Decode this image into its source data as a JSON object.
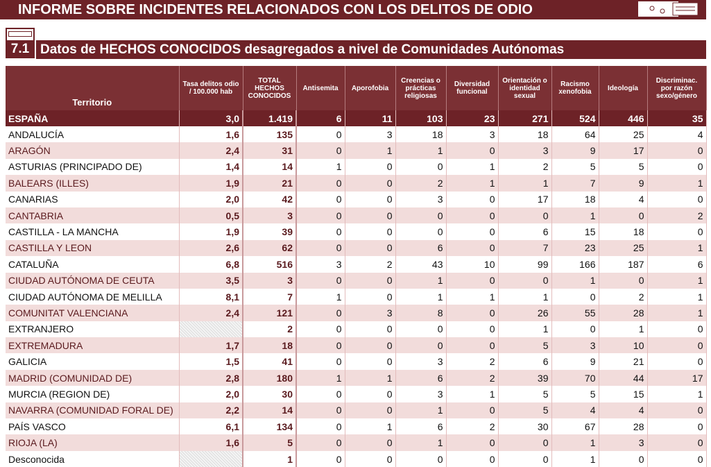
{
  "header": {
    "title": "INFORME SOBRE INCIDENTES RELACIONADOS CON LOS DELITOS DE ODIO"
  },
  "section": {
    "number": "7.1",
    "title": "Datos de HECHOS CONOCIDOS desagregados a nivel de Comunidades Autónomas"
  },
  "table": {
    "columns": [
      "Territorio",
      "Tasa delitos odio / 100.000 hab",
      "TOTAL HECHOS CONOCIDOS",
      "Antisemita",
      "Aporofobia",
      "Creencias o prácticas religiosas",
      "Diversidad funcional",
      "Orientación o identidad sexual",
      "Racismo xenofobia",
      "Ideología",
      "Discriminac. por razón sexo/género"
    ],
    "total": [
      "ESPAÑA",
      "3,0",
      "1.419",
      "6",
      "11",
      "103",
      "23",
      "271",
      "524",
      "446",
      "35"
    ],
    "rows": [
      [
        "ANDALUCÍA",
        "1,6",
        "135",
        "0",
        "3",
        "18",
        "3",
        "18",
        "64",
        "25",
        "4"
      ],
      [
        "ARAGÓN",
        "2,4",
        "31",
        "0",
        "1",
        "1",
        "0",
        "3",
        "9",
        "17",
        "0"
      ],
      [
        "ASTURIAS (PRINCIPADO DE)",
        "1,4",
        "14",
        "1",
        "0",
        "0",
        "1",
        "2",
        "5",
        "5",
        "0"
      ],
      [
        "BALEARS (ILLES)",
        "1,9",
        "21",
        "0",
        "0",
        "2",
        "1",
        "1",
        "7",
        "9",
        "1"
      ],
      [
        "CANARIAS",
        "2,0",
        "42",
        "0",
        "0",
        "3",
        "0",
        "17",
        "18",
        "4",
        "0"
      ],
      [
        "CANTABRIA",
        "0,5",
        "3",
        "0",
        "0",
        "0",
        "0",
        "0",
        "1",
        "0",
        "2"
      ],
      [
        "CASTILLA - LA MANCHA",
        "1,9",
        "39",
        "0",
        "0",
        "0",
        "0",
        "6",
        "15",
        "18",
        "0"
      ],
      [
        "CASTILLA Y LEON",
        "2,6",
        "62",
        "0",
        "0",
        "6",
        "0",
        "7",
        "23",
        "25",
        "1"
      ],
      [
        "CATALUÑA",
        "6,8",
        "516",
        "3",
        "2",
        "43",
        "10",
        "99",
        "166",
        "187",
        "6"
      ],
      [
        "CIUDAD AUTÓNOMA DE CEUTA",
        "3,5",
        "3",
        "0",
        "0",
        "1",
        "0",
        "0",
        "1",
        "0",
        "1"
      ],
      [
        "CIUDAD AUTÓNOMA DE MELILLA",
        "8,1",
        "7",
        "1",
        "0",
        "1",
        "1",
        "1",
        "0",
        "2",
        "1"
      ],
      [
        "COMUNITAT VALENCIANA",
        "2,4",
        "121",
        "0",
        "3",
        "8",
        "0",
        "26",
        "55",
        "28",
        "1"
      ],
      [
        "EXTRANJERO",
        null,
        "2",
        "0",
        "0",
        "0",
        "0",
        "1",
        "0",
        "1",
        "0"
      ],
      [
        "EXTREMADURA",
        "1,7",
        "18",
        "0",
        "0",
        "0",
        "0",
        "5",
        "3",
        "10",
        "0"
      ],
      [
        "GALICIA",
        "1,5",
        "41",
        "0",
        "0",
        "3",
        "2",
        "6",
        "9",
        "21",
        "0"
      ],
      [
        "MADRID (COMUNIDAD DE)",
        "2,8",
        "180",
        "1",
        "1",
        "6",
        "2",
        "39",
        "70",
        "44",
        "17"
      ],
      [
        "MURCIA (REGION DE)",
        "2,0",
        "30",
        "0",
        "0",
        "3",
        "1",
        "5",
        "5",
        "15",
        "1"
      ],
      [
        "NAVARRA (COMUNIDAD FORAL DE)",
        "2,2",
        "14",
        "0",
        "0",
        "1",
        "0",
        "5",
        "4",
        "4",
        "0"
      ],
      [
        "PAÍS VASCO",
        "6,1",
        "134",
        "0",
        "1",
        "6",
        "2",
        "30",
        "67",
        "28",
        "0"
      ],
      [
        "RIOJA (LA)",
        "1,6",
        "5",
        "0",
        "0",
        "1",
        "0",
        "0",
        "1",
        "3",
        "0"
      ],
      [
        "Desconocida",
        null,
        "1",
        "0",
        "0",
        "0",
        "0",
        "0",
        "1",
        "0",
        "0"
      ]
    ]
  }
}
